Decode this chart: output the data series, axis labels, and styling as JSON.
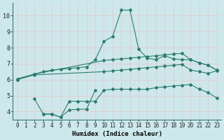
{
  "xlabel": "Humidex (Indice chaleur)",
  "xlim": [
    -0.5,
    23.5
  ],
  "ylim": [
    3.5,
    10.8
  ],
  "yticks": [
    4,
    5,
    6,
    7,
    8,
    9,
    10
  ],
  "xticks": [
    0,
    1,
    2,
    3,
    4,
    5,
    6,
    7,
    8,
    9,
    10,
    11,
    12,
    13,
    14,
    15,
    16,
    17,
    18,
    19,
    20,
    21,
    22,
    23
  ],
  "background_color": "#cce8ed",
  "grid_color": "#e8c8c8",
  "line_color": "#2e7d6e",
  "lines": [
    {
      "x": [
        0,
        2,
        3,
        4,
        5,
        6,
        7,
        8,
        9,
        10,
        11,
        12,
        13,
        14,
        15,
        16,
        17,
        18,
        19,
        20,
        21,
        22,
        23
      ],
      "y": [
        6.05,
        6.35,
        6.5,
        6.6,
        6.65,
        6.7,
        6.75,
        6.8,
        7.25,
        8.4,
        8.7,
        10.35,
        10.35,
        7.9,
        7.35,
        7.25,
        7.5,
        7.3,
        7.25,
        7.25,
        7.05,
        6.9,
        6.6
      ]
    },
    {
      "x": [
        0,
        2,
        10,
        11,
        12,
        13,
        14,
        15,
        16,
        17,
        18,
        19,
        20,
        21,
        22,
        23
      ],
      "y": [
        6.0,
        6.35,
        7.2,
        7.25,
        7.3,
        7.35,
        7.4,
        7.45,
        7.5,
        7.55,
        7.6,
        7.65,
        7.25,
        7.05,
        6.9,
        6.6
      ]
    },
    {
      "x": [
        0,
        2,
        10,
        11,
        12,
        13,
        14,
        15,
        16,
        17,
        18,
        19,
        20,
        21,
        22,
        23
      ],
      "y": [
        6.0,
        6.3,
        6.5,
        6.55,
        6.6,
        6.65,
        6.7,
        6.75,
        6.8,
        6.85,
        6.9,
        6.95,
        6.6,
        6.5,
        6.4,
        6.55
      ]
    },
    {
      "x": [
        2,
        3,
        4,
        5,
        6,
        7,
        8,
        9
      ],
      "y": [
        4.8,
        3.85,
        3.85,
        3.65,
        4.1,
        4.15,
        4.15,
        5.35
      ]
    },
    {
      "x": [
        3,
        4,
        5,
        6,
        7,
        8,
        9,
        10,
        11,
        12,
        13,
        14,
        15,
        16,
        17,
        18,
        19,
        20,
        21,
        22,
        23
      ],
      "y": [
        3.85,
        3.85,
        3.65,
        4.65,
        4.65,
        4.65,
        4.65,
        5.35,
        5.4,
        5.4,
        5.4,
        5.4,
        5.4,
        5.5,
        5.55,
        5.6,
        5.65,
        5.7,
        5.4,
        5.2,
        4.85
      ]
    }
  ]
}
